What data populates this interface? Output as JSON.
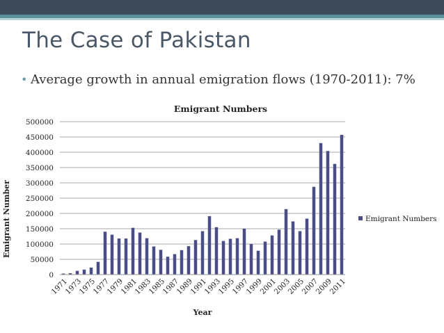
{
  "slide": {
    "title": "The Case of Pakistan",
    "bullet": "Average growth in annual emigration flows (1970-2011): 7%",
    "bullet_marker": "•"
  },
  "chart_data": {
    "type": "bar",
    "title": "Emigrant Numbers",
    "xlabel": "Year",
    "ylabel": "Emigrant Number",
    "ylim": [
      0,
      500000
    ],
    "yticks": [
      0,
      50000,
      100000,
      150000,
      200000,
      250000,
      300000,
      350000,
      400000,
      450000,
      500000
    ],
    "grid": true,
    "legend": "right",
    "bar_color": "#4a4e86",
    "categories": [
      "1971",
      "1972",
      "1973",
      "1974",
      "1975",
      "1976",
      "1977",
      "1978",
      "1979",
      "1980",
      "1981",
      "1982",
      "1983",
      "1984",
      "1985",
      "1986",
      "1987",
      "1988",
      "1989",
      "1990",
      "1991",
      "1992",
      "1993",
      "1994",
      "1995",
      "1996",
      "1997",
      "1998",
      "1999",
      "2000",
      "2001",
      "2002",
      "2003",
      "2004",
      "2005",
      "2006",
      "2007",
      "2008",
      "2009",
      "2010",
      "2011"
    ],
    "tick_labels": [
      "1971",
      "1973",
      "1975",
      "1977",
      "1979",
      "1981",
      "1983",
      "1985",
      "1987",
      "1989",
      "1991",
      "1993",
      "1995",
      "1997",
      "1999",
      "2001",
      "2003",
      "2005",
      "2007",
      "2009",
      "2011"
    ],
    "series": [
      {
        "name": "Emigrant Numbers",
        "values": [
          3500,
          4500,
          12300,
          16300,
          23000,
          41700,
          140400,
          130500,
          118000,
          118000,
          153000,
          137400,
          119000,
          92000,
          81000,
          58500,
          67000,
          80000,
          93000,
          113000,
          142000,
          191000,
          155000,
          110000,
          117000,
          119000,
          150000,
          100000,
          78000,
          108000,
          128000,
          147000,
          214000,
          174000,
          142000,
          183000,
          287000,
          430000,
          404000,
          362000,
          457000
        ]
      }
    ]
  }
}
